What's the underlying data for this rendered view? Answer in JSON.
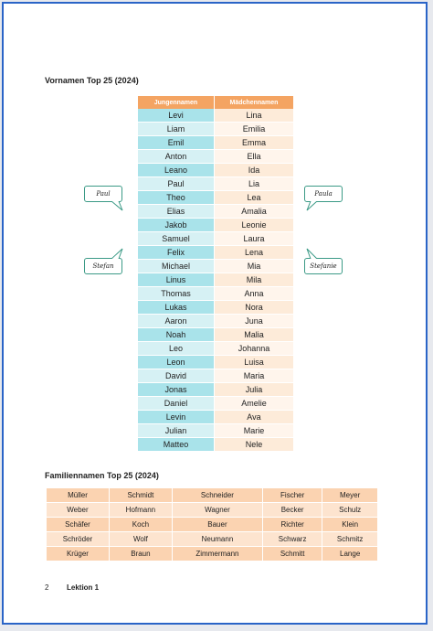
{
  "first_names": {
    "title": "Vornamen Top 25 (2024)",
    "headers": [
      "Jungennamen",
      "Mädchennamen"
    ],
    "rows": [
      [
        "Levi",
        "Lina"
      ],
      [
        "Liam",
        "Emilia"
      ],
      [
        "Emil",
        "Emma"
      ],
      [
        "Anton",
        "Ella"
      ],
      [
        "Leano",
        "Ida"
      ],
      [
        "Paul",
        "Lia"
      ],
      [
        "Theo",
        "Lea"
      ],
      [
        "Elias",
        "Amalia"
      ],
      [
        "Jakob",
        "Leonie"
      ],
      [
        "Samuel",
        "Laura"
      ],
      [
        "Felix",
        "Lena"
      ],
      [
        "Michael",
        "Mia"
      ],
      [
        "Linus",
        "Mila"
      ],
      [
        "Thomas",
        "Anna"
      ],
      [
        "Lukas",
        "Nora"
      ],
      [
        "Aaron",
        "Juna"
      ],
      [
        "Noah",
        "Malia"
      ],
      [
        "Leo",
        "Johanna"
      ],
      [
        "Leon",
        "Luisa"
      ],
      [
        "David",
        "Maria"
      ],
      [
        "Jonas",
        "Julia"
      ],
      [
        "Daniel",
        "Amelie"
      ],
      [
        "Levin",
        "Ava"
      ],
      [
        "Julian",
        "Marie"
      ],
      [
        "Matteo",
        "Nele"
      ]
    ]
  },
  "bubbles": {
    "paul": "Paul",
    "stefan": "Stefan",
    "paula": "Paula",
    "stefanie": "Stefanie"
  },
  "last_names": {
    "title": "Familiennamen Top 25 (2024)",
    "rows": [
      [
        "Müller",
        "Schmidt",
        "Schneider",
        "Fischer",
        "Meyer"
      ],
      [
        "Weber",
        "Hofmann",
        "Wagner",
        "Becker",
        "Schulz"
      ],
      [
        "Schäfer",
        "Koch",
        "Bauer",
        "Richter",
        "Klein"
      ],
      [
        "Schröder",
        "Wolf",
        "Neumann",
        "Schwarz",
        "Schmitz"
      ],
      [
        "Krüger",
        "Braun",
        "Zimmermann",
        "Schmitt",
        "Lange"
      ]
    ]
  },
  "footer": {
    "page": "2",
    "lesson": "Lektion 1"
  },
  "colors": {
    "border": "#2a64c7",
    "header_orange": "#f4a462",
    "boys": "#a9e3ea",
    "girls": "#fdebd9",
    "bubble": "#3b9a86"
  }
}
